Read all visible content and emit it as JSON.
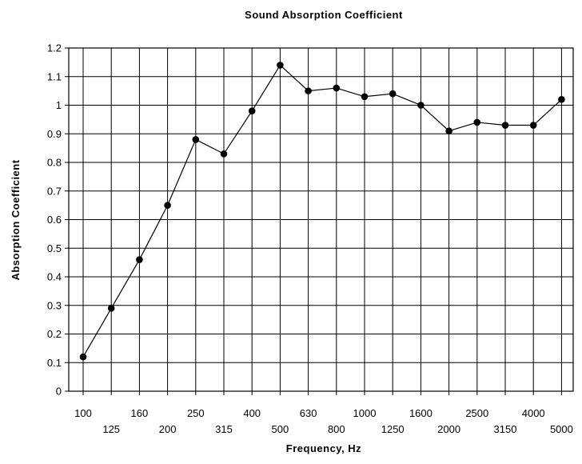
{
  "chart_data": {
    "type": "line",
    "title": "Sound Absorption Coefficient",
    "xlabel": "Frequency, Hz",
    "ylabel": "Absorption Coefficient",
    "x_scale": "categorical (one-third octave bands)",
    "categories": [
      "100",
      "125",
      "160",
      "200",
      "250",
      "315",
      "400",
      "500",
      "630",
      "800",
      "1000",
      "1250",
      "1600",
      "2000",
      "2500",
      "3150",
      "4000",
      "5000"
    ],
    "series": [
      {
        "values": [
          0.12,
          0.29,
          0.46,
          0.65,
          0.88,
          0.83,
          0.98,
          1.14,
          1.05,
          1.06,
          1.03,
          1.04,
          1.0,
          0.91,
          0.94,
          0.93,
          0.93,
          1.02
        ]
      }
    ],
    "ylim": [
      0,
      1.2
    ],
    "yticks": [
      "0",
      "0.1",
      "0.2",
      "0.3",
      "0.4",
      "0.5",
      "0.6",
      "0.7",
      "0.8",
      "0.9",
      "1",
      "1.1",
      "1.2"
    ],
    "grid": true,
    "legend": "none",
    "colors": {
      "line": "#000000",
      "marker": "#000000",
      "grid": "#000000"
    }
  }
}
